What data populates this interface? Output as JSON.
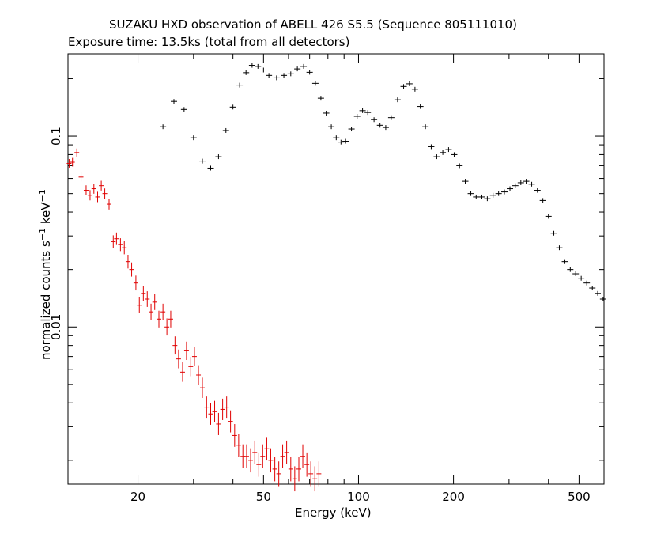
{
  "chart_data": {
    "type": "scatter",
    "title": "SUZAKU HXD observation of ABELL 426 S5.5 (Sequence 805111010)",
    "subtitle": "Exposure time: 13.5ks (total from all detectors)",
    "xlabel": "Energy (keV)",
    "ylabel_text": "normalized counts s",
    "ylabel_exp1": "−1",
    "ylabel_mid": " keV",
    "ylabel_exp2": "−1",
    "xscale": "log",
    "yscale": "log",
    "xlim": [
      12,
      600
    ],
    "ylim": [
      0.0015,
      0.27
    ],
    "x_ticks": [
      {
        "value": 20,
        "label": "20"
      },
      {
        "value": 50,
        "label": "50"
      },
      {
        "value": 100,
        "label": "100"
      },
      {
        "value": 200,
        "label": "200"
      },
      {
        "value": 500,
        "label": "500"
      }
    ],
    "y_ticks": [
      {
        "value": 0.01,
        "label": "0.01"
      },
      {
        "value": 0.1,
        "label": "0.1"
      }
    ],
    "series": [
      {
        "color": "#e00000",
        "points": [
          [
            12.1,
            0.072
          ],
          [
            12.4,
            0.073
          ],
          [
            12.8,
            0.082
          ],
          [
            13.2,
            0.061
          ],
          [
            13.7,
            0.052
          ],
          [
            14.1,
            0.049
          ],
          [
            14.5,
            0.053
          ],
          [
            14.9,
            0.048
          ],
          [
            15.3,
            0.055
          ],
          [
            15.7,
            0.05
          ],
          [
            16.2,
            0.044
          ],
          [
            16.7,
            0.028
          ],
          [
            17.1,
            0.029
          ],
          [
            17.6,
            0.027
          ],
          [
            18.1,
            0.026
          ],
          [
            18.6,
            0.022
          ],
          [
            19.1,
            0.02
          ],
          [
            19.7,
            0.017
          ],
          [
            20.2,
            0.013
          ],
          [
            20.8,
            0.015
          ],
          [
            21.4,
            0.014
          ],
          [
            22.0,
            0.012
          ],
          [
            22.6,
            0.0135
          ],
          [
            23.3,
            0.011
          ],
          [
            24.0,
            0.012
          ],
          [
            24.7,
            0.01
          ],
          [
            25.4,
            0.011
          ],
          [
            26.2,
            0.008
          ],
          [
            26.9,
            0.0068
          ],
          [
            27.7,
            0.0058
          ],
          [
            28.5,
            0.0075
          ],
          [
            29.4,
            0.0062
          ],
          [
            30.2,
            0.007
          ],
          [
            31.1,
            0.0056
          ],
          [
            32.0,
            0.0048
          ],
          [
            33.0,
            0.0038
          ],
          [
            34.0,
            0.0035
          ],
          [
            35.0,
            0.0036
          ],
          [
            36.0,
            0.0031
          ],
          [
            37.1,
            0.0037
          ],
          [
            38.2,
            0.0038
          ],
          [
            39.3,
            0.0032
          ],
          [
            40.5,
            0.0027
          ],
          [
            41.7,
            0.0024
          ],
          [
            43.0,
            0.0021
          ],
          [
            44.2,
            0.0021
          ],
          [
            45.5,
            0.002
          ],
          [
            46.9,
            0.0022
          ],
          [
            48.3,
            0.0019
          ],
          [
            49.7,
            0.0021
          ],
          [
            51.2,
            0.0023
          ],
          [
            52.7,
            0.002
          ],
          [
            54.3,
            0.0018
          ],
          [
            55.9,
            0.0017
          ],
          [
            57.5,
            0.0021
          ],
          [
            59.2,
            0.0022
          ],
          [
            61.0,
            0.0018
          ],
          [
            62.8,
            0.0016
          ],
          [
            64.7,
            0.0018
          ],
          [
            66.6,
            0.0021
          ],
          [
            68.6,
            0.0019
          ],
          [
            70.6,
            0.0017
          ],
          [
            72.7,
            0.0016
          ],
          [
            74.9,
            0.0017
          ]
        ]
      },
      {
        "color": "#000000",
        "points": [
          [
            24,
            0.112
          ],
          [
            26,
            0.152
          ],
          [
            28,
            0.138
          ],
          [
            30,
            0.098
          ],
          [
            32,
            0.074
          ],
          [
            34,
            0.068
          ],
          [
            36,
            0.078
          ],
          [
            38,
            0.107
          ],
          [
            40,
            0.142
          ],
          [
            42,
            0.185
          ],
          [
            44,
            0.215
          ],
          [
            46,
            0.235
          ],
          [
            48,
            0.232
          ],
          [
            50,
            0.222
          ],
          [
            52,
            0.208
          ],
          [
            55,
            0.202
          ],
          [
            58,
            0.208
          ],
          [
            61,
            0.212
          ],
          [
            64,
            0.225
          ],
          [
            67,
            0.232
          ],
          [
            70,
            0.216
          ],
          [
            73,
            0.189
          ],
          [
            76,
            0.158
          ],
          [
            79,
            0.132
          ],
          [
            82,
            0.112
          ],
          [
            85,
            0.098
          ],
          [
            88,
            0.093
          ],
          [
            91,
            0.094
          ],
          [
            95,
            0.109
          ],
          [
            99,
            0.127
          ],
          [
            103,
            0.136
          ],
          [
            107,
            0.133
          ],
          [
            112,
            0.122
          ],
          [
            117,
            0.114
          ],
          [
            122,
            0.111
          ],
          [
            127,
            0.125
          ],
          [
            133,
            0.155
          ],
          [
            139,
            0.182
          ],
          [
            145,
            0.188
          ],
          [
            151,
            0.176
          ],
          [
            157,
            0.143
          ],
          [
            163,
            0.112
          ],
          [
            170,
            0.088
          ],
          [
            177,
            0.078
          ],
          [
            185,
            0.082
          ],
          [
            193,
            0.085
          ],
          [
            201,
            0.08
          ],
          [
            209,
            0.07
          ],
          [
            218,
            0.058
          ],
          [
            227,
            0.05
          ],
          [
            236,
            0.048
          ],
          [
            246,
            0.048
          ],
          [
            256,
            0.047
          ],
          [
            267,
            0.049
          ],
          [
            278,
            0.05
          ],
          [
            290,
            0.051
          ],
          [
            302,
            0.053
          ],
          [
            314,
            0.055
          ],
          [
            327,
            0.057
          ],
          [
            340,
            0.058
          ],
          [
            354,
            0.056
          ],
          [
            369,
            0.052
          ],
          [
            384,
            0.046
          ],
          [
            400,
            0.038
          ],
          [
            416,
            0.031
          ],
          [
            433,
            0.026
          ],
          [
            451,
            0.022
          ],
          [
            469,
            0.02
          ],
          [
            488,
            0.019
          ],
          [
            508,
            0.018
          ],
          [
            529,
            0.017
          ],
          [
            551,
            0.016
          ],
          [
            573,
            0.015
          ],
          [
            596,
            0.014
          ]
        ]
      }
    ]
  }
}
